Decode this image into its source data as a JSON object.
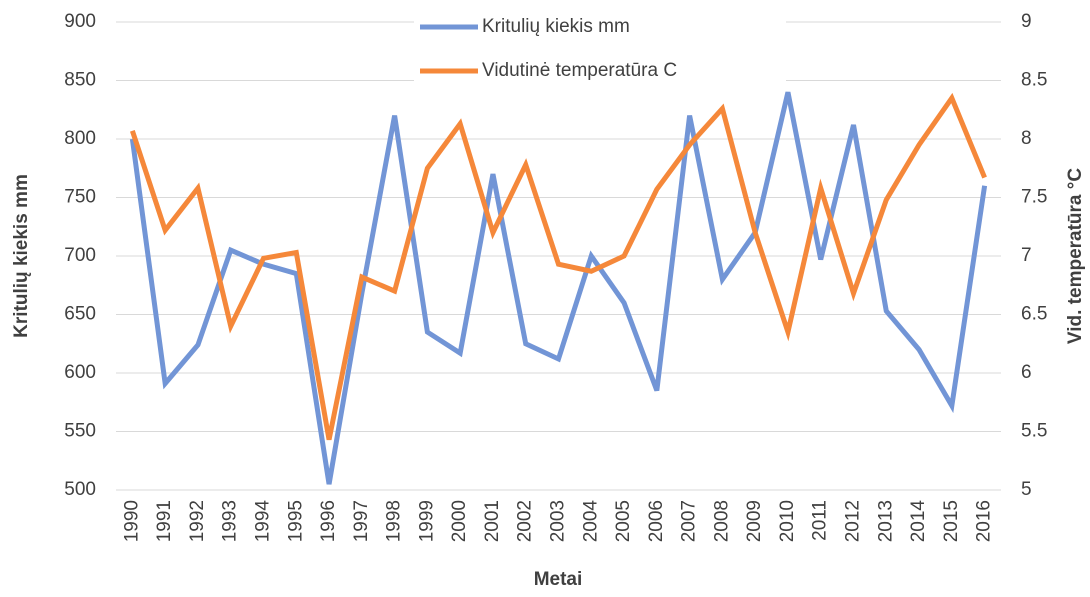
{
  "chart_data": {
    "type": "line",
    "x_label": "Metai",
    "y_label": "Kritulių kiekis mm",
    "y2_label": "Vid. temperatūra °C",
    "categories": [
      "1990",
      "1991",
      "1992",
      "1993",
      "1994",
      "1995",
      "1996",
      "1997",
      "1998",
      "1999",
      "2000",
      "2001",
      "2002",
      "2003",
      "2004",
      "2005",
      "2006",
      "2007",
      "2008",
      "2009",
      "2010",
      "2011",
      "2012",
      "2013",
      "2014",
      "2015",
      "2016"
    ],
    "series": [
      {
        "name": "Kritulių kiekis mm",
        "color": "#7295d6",
        "values": [
          800,
          591,
          624,
          705,
          693,
          685,
          505,
          668,
          820,
          635,
          617,
          770,
          625,
          612,
          700,
          660,
          585,
          820,
          680,
          720,
          840,
          697,
          812,
          653,
          620,
          572,
          760
        ]
      },
      {
        "name": "Vidutinė temperatūra C",
        "color": "#f5883a",
        "axis": "y2",
        "values": [
          8.07,
          7.22,
          7.58,
          6.4,
          6.98,
          7.03,
          5.43,
          6.82,
          6.7,
          7.75,
          8.13,
          7.2,
          7.78,
          6.93,
          6.87,
          7.0,
          7.57,
          7.95,
          8.26,
          7.2,
          6.35,
          7.58,
          6.68,
          7.48,
          7.95,
          8.35,
          7.67
        ]
      }
    ],
    "ylim": [
      500,
      900
    ],
    "yticks": [
      500,
      550,
      600,
      650,
      700,
      750,
      800,
      850,
      900
    ],
    "y2lim": [
      5,
      9
    ],
    "y2ticks": [
      5,
      5.5,
      6,
      6.5,
      7,
      7.5,
      8,
      8.5,
      9
    ],
    "grid": true,
    "legend_position": "top"
  }
}
